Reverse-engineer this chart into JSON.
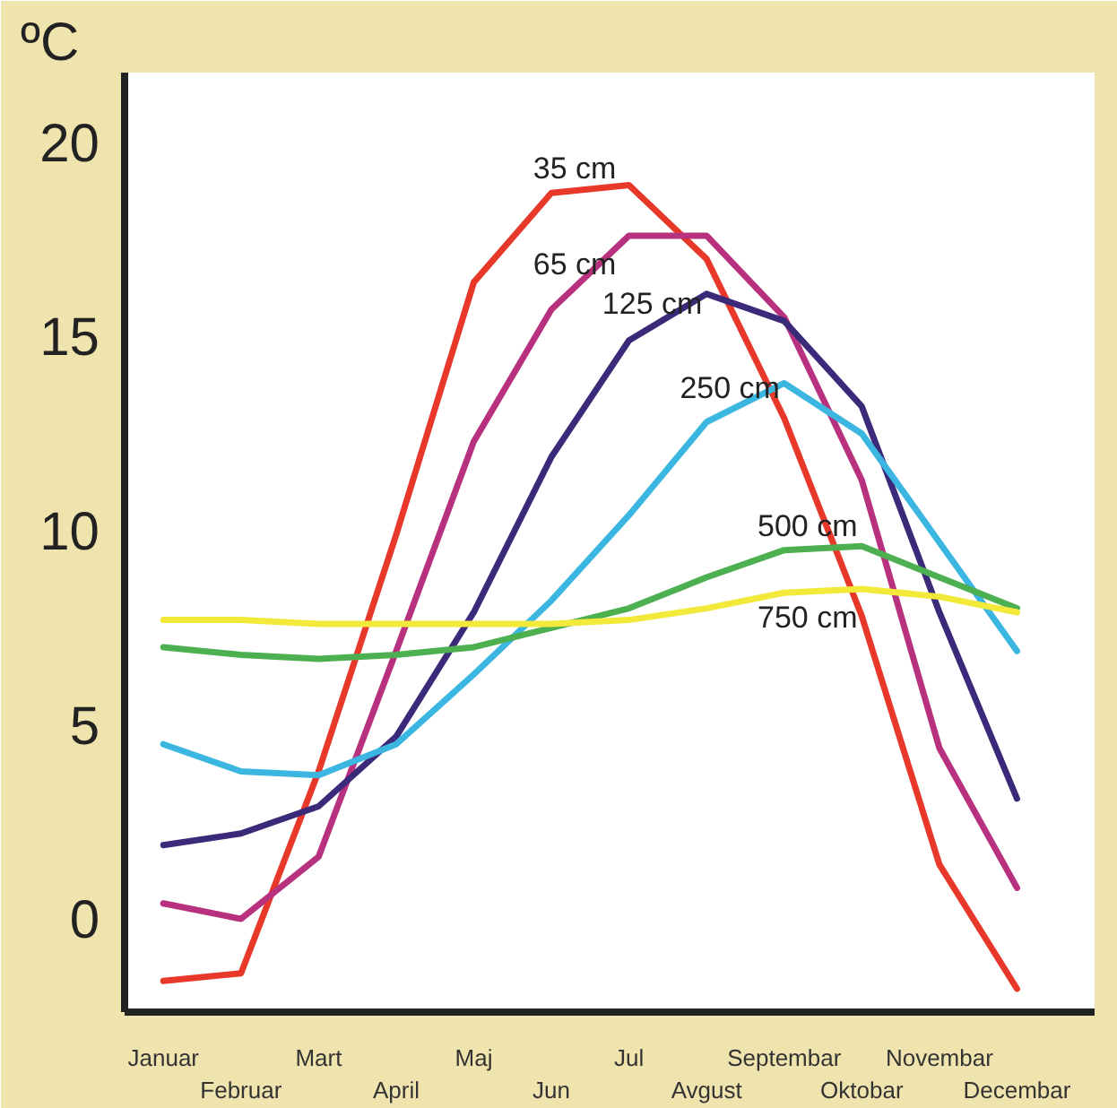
{
  "chart_data": {
    "type": "line",
    "ylabel": "ºC",
    "categories": [
      "Januar",
      "Februar",
      "Mart",
      "April",
      "Maj",
      "Jun",
      "Jul",
      "Avgust",
      "Septembar",
      "Oktobar",
      "Novembar",
      "Decembar"
    ],
    "ylim": [
      -2.4,
      21.8
    ],
    "yticks": [
      0,
      5,
      10,
      15,
      20
    ],
    "grid": false,
    "legend": false,
    "marker": "none",
    "line_style": "solid",
    "series": [
      {
        "name": "35 cm",
        "color": "#e8382a",
        "values": [
          -1.6,
          -1.4,
          3.8,
          9.9,
          16.4,
          18.7,
          18.9,
          17.0,
          12.9,
          7.8,
          1.4,
          -1.8
        ]
      },
      {
        "name": "65 cm",
        "color": "#b7317f",
        "values": [
          0.4,
          0.0,
          1.6,
          6.9,
          12.3,
          15.7,
          17.6,
          17.6,
          15.5,
          11.3,
          4.4,
          0.8
        ]
      },
      {
        "name": "125 cm",
        "color": "#3b2a7a",
        "values": [
          1.9,
          2.2,
          2.9,
          4.7,
          7.9,
          11.9,
          14.9,
          16.1,
          15.4,
          13.2,
          7.9,
          3.1
        ]
      },
      {
        "name": "250 cm",
        "color": "#3bb6e0",
        "values": [
          4.5,
          3.8,
          3.7,
          4.5,
          6.3,
          8.2,
          10.4,
          12.8,
          13.8,
          12.5,
          9.7,
          6.9
        ]
      },
      {
        "name": "500 cm",
        "color": "#4caf50",
        "values": [
          7.0,
          6.8,
          6.7,
          6.8,
          7.0,
          7.5,
          8.0,
          8.8,
          9.5,
          9.6,
          8.8,
          8.0
        ]
      },
      {
        "name": "750 cm",
        "color": "#f2e93a",
        "values": [
          7.7,
          7.7,
          7.6,
          7.6,
          7.6,
          7.6,
          7.7,
          8.0,
          8.4,
          8.5,
          8.3,
          7.9
        ]
      }
    ]
  }
}
